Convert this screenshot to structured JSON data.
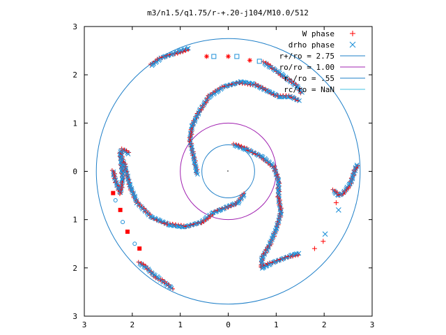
{
  "chart_data": {
    "type": "scatter",
    "title": "m3/n1.5/q1.75/r-+.20-j104/M10.0/512",
    "xlim": [
      -3,
      3
    ],
    "ylim": [
      -3,
      3
    ],
    "x_ticks": [
      "3",
      "2",
      "1",
      "0",
      "1",
      "2",
      "3"
    ],
    "y_ticks": [
      "3",
      "2",
      "1",
      "0",
      "1",
      "2",
      "3"
    ],
    "grid": false,
    "legend_position": "top-right",
    "colors": {
      "w_phase": "#ff0000",
      "drho_phase": "#1e90d8",
      "circle_275": "#1e7fc8",
      "circle_100": "#a020b0",
      "circle_055": "#1e7fc8"
    },
    "legend": [
      {
        "label": "W phase",
        "marker": "plus",
        "color": "#ff0000"
      },
      {
        "label": "drho phase",
        "marker": "cross",
        "color": "#1e90d8"
      },
      {
        "label": "r+/ro = 2.75",
        "marker": "line",
        "color": "#1e7fc8"
      },
      {
        "label": "ro/ro = 1.00",
        "marker": "line",
        "color": "#a020b0"
      },
      {
        "label": "r-/ro = .55",
        "marker": "line",
        "color": "#1e7fc8"
      },
      {
        "label": "rc/ro = NaN",
        "marker": "line",
        "color": "#40c0e0"
      }
    ],
    "circles": [
      {
        "name": "r+/ro = 2.75",
        "radius": 2.75
      },
      {
        "name": "ro/ro = 1.00",
        "radius": 1.0
      },
      {
        "name": "r-/ro = .55",
        "radius": 0.55
      }
    ],
    "series": [
      {
        "name": "W phase",
        "marker": "plus"
      },
      {
        "name": "drho phase",
        "marker": "cross"
      }
    ],
    "spiral_arms": [
      {
        "points": [
          [
            0.13,
            0.55
          ],
          [
            0.4,
            0.45
          ],
          [
            0.7,
            0.3
          ],
          [
            0.95,
            0.1
          ],
          [
            1.05,
            -0.2
          ],
          [
            1.05,
            -0.55
          ],
          [
            1.1,
            -0.85
          ],
          [
            1.0,
            -1.2
          ],
          [
            0.85,
            -1.55
          ],
          [
            0.7,
            -1.8
          ],
          [
            0.7,
            -2.0
          ],
          [
            0.9,
            -1.9
          ],
          [
            1.3,
            -1.75
          ],
          [
            1.5,
            -1.7
          ]
        ]
      },
      {
        "points": [
          [
            -0.65,
            -0.05
          ],
          [
            -0.72,
            0.3
          ],
          [
            -0.8,
            0.65
          ],
          [
            -0.75,
            0.95
          ],
          [
            -0.6,
            1.25
          ],
          [
            -0.4,
            1.55
          ],
          [
            -0.1,
            1.75
          ],
          [
            0.25,
            1.85
          ],
          [
            0.55,
            1.8
          ],
          [
            0.85,
            1.65
          ],
          [
            1.05,
            1.55
          ],
          [
            1.3,
            1.55
          ],
          [
            1.5,
            1.45
          ]
        ]
      },
      {
        "points": [
          [
            -2.25,
            0.35
          ],
          [
            -2.15,
            0.1
          ],
          [
            -2.05,
            -0.3
          ],
          [
            -1.9,
            -0.65
          ],
          [
            -1.6,
            -0.95
          ],
          [
            -1.25,
            -1.1
          ],
          [
            -0.9,
            -1.15
          ],
          [
            -0.55,
            -1.05
          ],
          [
            -0.3,
            -0.85
          ],
          [
            -0.05,
            -0.75
          ],
          [
            0.2,
            -0.65
          ],
          [
            0.35,
            -0.45
          ]
        ]
      },
      {
        "points": [
          [
            -2.4,
            0.0
          ],
          [
            -2.35,
            -0.2
          ],
          [
            -2.25,
            -0.45
          ],
          [
            -2.2,
            -0.15
          ],
          [
            -2.25,
            0.4
          ],
          [
            -2.2,
            0.45
          ],
          [
            -2.05,
            0.35
          ]
        ]
      },
      {
        "points": [
          [
            -1.85,
            -1.9
          ],
          [
            -1.7,
            -2.0
          ],
          [
            -1.55,
            -2.15
          ],
          [
            -1.4,
            -2.25
          ],
          [
            -1.2,
            -2.4
          ],
          [
            -1.15,
            -2.45
          ]
        ]
      },
      {
        "points": [
          [
            -1.6,
            2.2
          ],
          [
            -1.4,
            2.35
          ],
          [
            -1.1,
            2.45
          ],
          [
            -0.8,
            2.55
          ]
        ]
      },
      {
        "points": [
          [
            0.75,
            2.25
          ],
          [
            0.9,
            2.15
          ],
          [
            1.05,
            2.05
          ],
          [
            1.25,
            1.9
          ],
          [
            1.45,
            1.75
          ],
          [
            1.55,
            1.6
          ]
        ]
      },
      {
        "points": [
          [
            2.2,
            -0.4
          ],
          [
            2.3,
            -0.5
          ],
          [
            2.4,
            -0.45
          ],
          [
            2.55,
            -0.25
          ],
          [
            2.65,
            0.05
          ],
          [
            2.7,
            0.15
          ]
        ]
      }
    ],
    "gap_markers": [
      {
        "x": -0.45,
        "y": 2.38,
        "marker": "star",
        "color": "#ff0000"
      },
      {
        "x": -0.3,
        "y": 2.38,
        "marker": "square",
        "color": "#1e90d8"
      },
      {
        "x": 0.0,
        "y": 2.38,
        "marker": "star",
        "color": "#ff0000"
      },
      {
        "x": 0.18,
        "y": 2.38,
        "marker": "square",
        "color": "#1e90d8"
      },
      {
        "x": 0.45,
        "y": 2.3,
        "marker": "star",
        "color": "#ff0000"
      },
      {
        "x": 0.65,
        "y": 2.28,
        "marker": "square",
        "color": "#1e90d8"
      },
      {
        "x": -2.4,
        "y": -0.45,
        "marker": "filledsquare",
        "color": "#ff0000"
      },
      {
        "x": -2.35,
        "y": -0.6,
        "marker": "circle",
        "color": "#1e90d8"
      },
      {
        "x": -2.25,
        "y": -0.8,
        "marker": "filledsquare",
        "color": "#ff0000"
      },
      {
        "x": -2.2,
        "y": -1.05,
        "marker": "circle",
        "color": "#1e90d8"
      },
      {
        "x": -2.1,
        "y": -1.25,
        "marker": "filledsquare",
        "color": "#ff0000"
      },
      {
        "x": -1.95,
        "y": -1.5,
        "marker": "circle",
        "color": "#1e90d8"
      },
      {
        "x": -1.85,
        "y": -1.6,
        "marker": "filledsquare",
        "color": "#ff0000"
      },
      {
        "x": 1.8,
        "y": -1.6,
        "marker": "plus",
        "color": "#ff0000"
      },
      {
        "x": 1.98,
        "y": -1.45,
        "marker": "plus",
        "color": "#ff0000"
      },
      {
        "x": 2.02,
        "y": -1.3,
        "marker": "cross",
        "color": "#1e90d8"
      },
      {
        "x": 2.3,
        "y": -0.8,
        "marker": "cross",
        "color": "#1e90d8"
      },
      {
        "x": 2.25,
        "y": -0.65,
        "marker": "plus",
        "color": "#ff0000"
      }
    ]
  }
}
